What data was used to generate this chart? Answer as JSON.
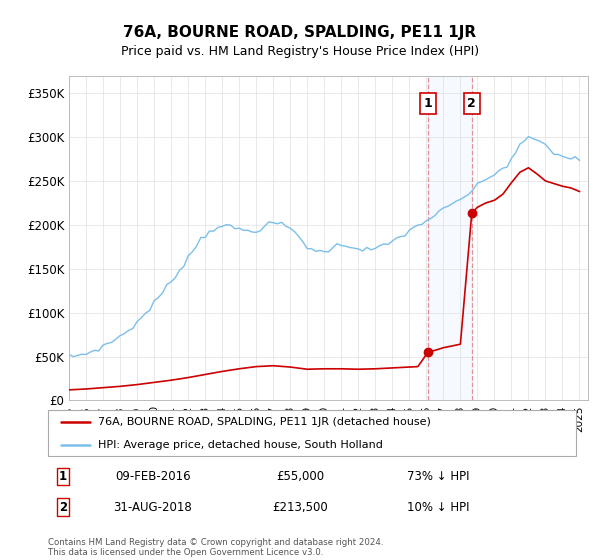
{
  "title": "76A, BOURNE ROAD, SPALDING, PE11 1JR",
  "subtitle": "Price paid vs. HM Land Registry's House Price Index (HPI)",
  "footer": "Contains HM Land Registry data © Crown copyright and database right 2024.\nThis data is licensed under the Open Government Licence v3.0.",
  "legend_line1": "76A, BOURNE ROAD, SPALDING, PE11 1JR (detached house)",
  "legend_line2": "HPI: Average price, detached house, South Holland",
  "transaction1_label": "1",
  "transaction1_date": "09-FEB-2016",
  "transaction1_price": "£55,000",
  "transaction1_hpi": "73% ↓ HPI",
  "transaction2_label": "2",
  "transaction2_date": "31-AUG-2018",
  "transaction2_price": "£213,500",
  "transaction2_hpi": "10% ↓ HPI",
  "hpi_color": "#7bbfea",
  "price_color": "#cc0000",
  "ylim": [
    0,
    370000
  ],
  "yticks": [
    0,
    50000,
    100000,
    150000,
    200000,
    250000,
    300000,
    350000
  ],
  "ytick_labels": [
    "£0",
    "£50K",
    "£100K",
    "£150K",
    "£200K",
    "£250K",
    "£300K",
    "£350K"
  ],
  "transaction1_x": 2016.1,
  "transaction1_y": 55000,
  "transaction2_x": 2018.67,
  "transaction2_y": 213500,
  "vline1_x": 2016.1,
  "vline2_x": 2018.67,
  "background_color": "#ffffff",
  "grid_color": "#e0e0e0",
  "xmin": 1995,
  "xmax": 2025.5,
  "hpi_x": [
    1995.0,
    1995.25,
    1995.5,
    1995.75,
    1996.0,
    1996.25,
    1996.5,
    1996.75,
    1997.0,
    1997.25,
    1997.5,
    1997.75,
    1998.0,
    1998.25,
    1998.5,
    1998.75,
    1999.0,
    1999.25,
    1999.5,
    1999.75,
    2000.0,
    2000.25,
    2000.5,
    2000.75,
    2001.0,
    2001.25,
    2001.5,
    2001.75,
    2002.0,
    2002.25,
    2002.5,
    2002.75,
    2003.0,
    2003.25,
    2003.5,
    2003.75,
    2004.0,
    2004.25,
    2004.5,
    2004.75,
    2005.0,
    2005.25,
    2005.5,
    2005.75,
    2006.0,
    2006.25,
    2006.5,
    2006.75,
    2007.0,
    2007.25,
    2007.5,
    2007.75,
    2008.0,
    2008.25,
    2008.5,
    2008.75,
    2009.0,
    2009.25,
    2009.5,
    2009.75,
    2010.0,
    2010.25,
    2010.5,
    2010.75,
    2011.0,
    2011.25,
    2011.5,
    2011.75,
    2012.0,
    2012.25,
    2012.5,
    2012.75,
    2013.0,
    2013.25,
    2013.5,
    2013.75,
    2014.0,
    2014.25,
    2014.5,
    2014.75,
    2015.0,
    2015.25,
    2015.5,
    2015.75,
    2016.0,
    2016.25,
    2016.5,
    2016.75,
    2017.0,
    2017.25,
    2017.5,
    2017.75,
    2018.0,
    2018.25,
    2018.5,
    2018.75,
    2019.0,
    2019.25,
    2019.5,
    2019.75,
    2020.0,
    2020.25,
    2020.5,
    2020.75,
    2021.0,
    2021.25,
    2021.5,
    2021.75,
    2022.0,
    2022.25,
    2022.5,
    2022.75,
    2023.0,
    2023.25,
    2023.5,
    2023.75,
    2024.0,
    2024.25,
    2024.5,
    2024.75,
    2025.0
  ],
  "hpi_y": [
    50000,
    50500,
    51200,
    52000,
    53500,
    55000,
    57000,
    59000,
    61500,
    64000,
    67000,
    70000,
    73000,
    76500,
    80000,
    84000,
    89000,
    94000,
    99000,
    105000,
    111000,
    117000,
    123000,
    129000,
    135000,
    142000,
    149000,
    156000,
    163000,
    170000,
    177000,
    184000,
    188000,
    192000,
    196000,
    198000,
    200000,
    198000,
    197000,
    196000,
    195000,
    194000,
    193000,
    193000,
    194000,
    196000,
    198000,
    200000,
    202000,
    202000,
    200000,
    198000,
    196000,
    192000,
    187000,
    181000,
    175000,
    172000,
    170000,
    169000,
    170000,
    172000,
    174000,
    176000,
    177000,
    177000,
    176000,
    175000,
    173000,
    172000,
    172000,
    172000,
    173000,
    174000,
    176000,
    178000,
    181000,
    184000,
    187000,
    190000,
    193000,
    196000,
    199000,
    202000,
    205000,
    208000,
    211000,
    214000,
    217000,
    220000,
    223000,
    226000,
    229000,
    232000,
    236000,
    240000,
    244000,
    248000,
    252000,
    255000,
    258000,
    261000,
    264000,
    268000,
    275000,
    283000,
    290000,
    295000,
    298000,
    299000,
    297000,
    294000,
    290000,
    285000,
    282000,
    280000,
    278000,
    277000,
    276000,
    275000,
    274000
  ],
  "price_x": [
    1995.0,
    1996.0,
    1997.0,
    1998.0,
    1999.0,
    2000.0,
    2001.0,
    2002.0,
    2003.0,
    2004.0,
    2005.0,
    2006.0,
    2007.0,
    2008.0,
    2009.0,
    2010.0,
    2011.0,
    2012.0,
    2013.0,
    2014.0,
    2015.0,
    2015.5,
    2016.1,
    2016.5,
    2017.0,
    2017.5,
    2017.75,
    2018.0,
    2018.67,
    2019.0,
    2019.5,
    2020.0,
    2020.5,
    2021.0,
    2021.5,
    2022.0,
    2022.5,
    2023.0,
    2023.5,
    2024.0,
    2024.5,
    2025.0
  ],
  "price_y": [
    12000,
    13000,
    14500,
    16000,
    18000,
    20500,
    23000,
    26000,
    29500,
    33000,
    36000,
    38500,
    39500,
    38000,
    35500,
    36000,
    36000,
    35500,
    36000,
    37000,
    38000,
    38500,
    55000,
    57000,
    60000,
    62000,
    63000,
    64000,
    213500,
    220000,
    225000,
    228000,
    235000,
    248000,
    260000,
    265000,
    258000,
    250000,
    247000,
    244000,
    242000,
    238000
  ]
}
